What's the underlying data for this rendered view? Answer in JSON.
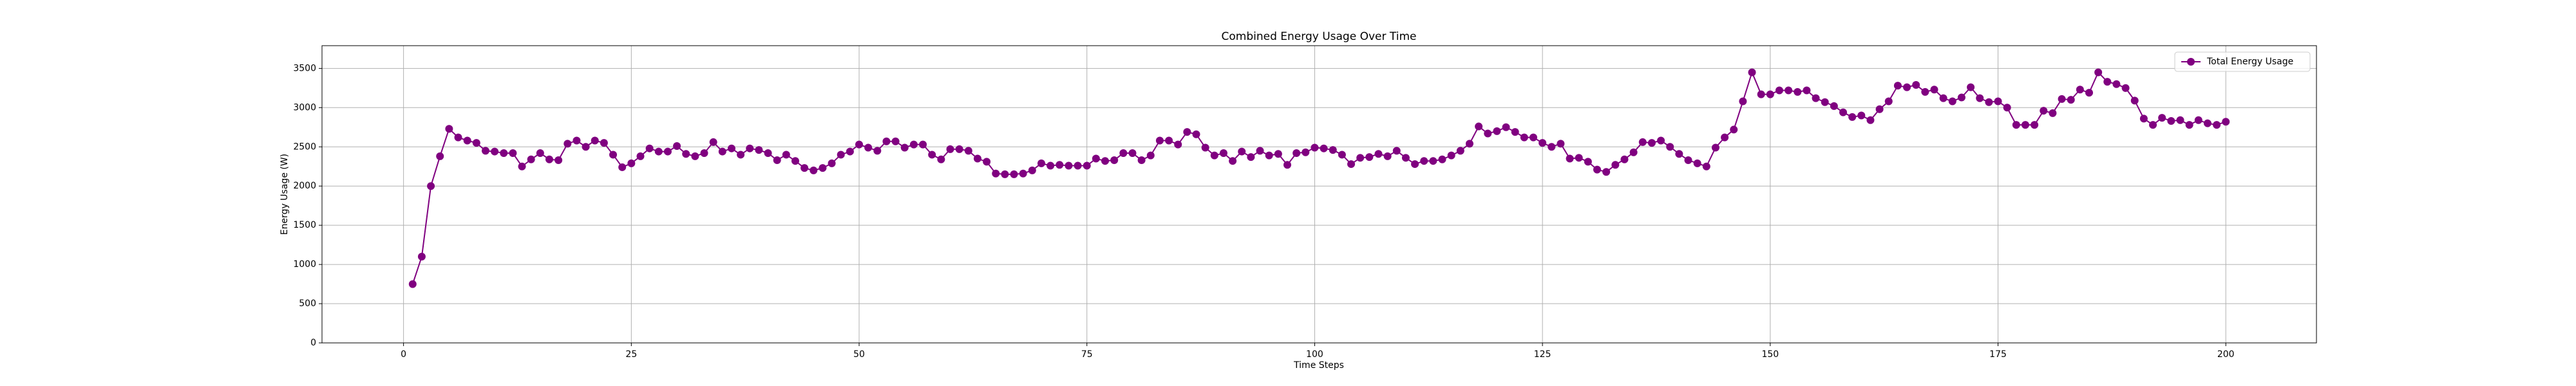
{
  "chart_data": {
    "type": "line",
    "title": "Combined Energy Usage Over Time",
    "xlabel": "Time Steps",
    "ylabel": "Energy Usage (W)",
    "x": [
      1,
      2,
      3,
      4,
      5,
      6,
      7,
      8,
      9,
      10,
      11,
      12,
      13,
      14,
      15,
      16,
      17,
      18,
      19,
      20,
      21,
      22,
      23,
      24,
      25,
      26,
      27,
      28,
      29,
      30,
      31,
      32,
      33,
      34,
      35,
      36,
      37,
      38,
      39,
      40,
      41,
      42,
      43,
      44,
      45,
      46,
      47,
      48,
      49,
      50,
      51,
      52,
      53,
      54,
      55,
      56,
      57,
      58,
      59,
      60,
      61,
      62,
      63,
      64,
      65,
      66,
      67,
      68,
      69,
      70,
      71,
      72,
      73,
      74,
      75,
      76,
      77,
      78,
      79,
      80,
      81,
      82,
      83,
      84,
      85,
      86,
      87,
      88,
      89,
      90,
      91,
      92,
      93,
      94,
      95,
      96,
      97,
      98,
      99,
      100,
      101,
      102,
      103,
      104,
      105,
      106,
      107,
      108,
      109,
      110,
      111,
      112,
      113,
      114,
      115,
      116,
      117,
      118,
      119,
      120,
      121,
      122,
      123,
      124,
      125,
      126,
      127,
      128,
      129,
      130,
      131,
      132,
      133,
      134,
      135,
      136,
      137,
      138,
      139,
      140,
      141,
      142,
      143,
      144,
      145,
      146,
      147,
      148,
      149,
      150,
      151,
      152,
      153,
      154,
      155,
      156,
      157,
      158,
      159,
      160,
      161,
      162,
      163,
      164,
      165,
      166,
      167,
      168,
      169,
      170,
      171,
      172,
      173,
      174,
      175,
      176,
      177,
      178,
      179,
      180,
      181,
      182,
      183,
      184,
      185,
      186,
      187,
      188,
      189,
      190,
      191,
      192,
      193,
      194,
      195,
      196,
      197,
      198,
      199,
      200
    ],
    "series": [
      {
        "name": "Total Energy Usage",
        "color": "#800080",
        "values": [
          750,
          1100,
          2000,
          2380,
          2730,
          2620,
          2580,
          2550,
          2450,
          2440,
          2420,
          2420,
          2250,
          2340,
          2420,
          2340,
          2330,
          2540,
          2580,
          2500,
          2580,
          2550,
          2400,
          2240,
          2290,
          2380,
          2480,
          2440,
          2440,
          2510,
          2410,
          2380,
          2420,
          2560,
          2440,
          2480,
          2400,
          2480,
          2460,
          2420,
          2330,
          2400,
          2320,
          2230,
          2200,
          2230,
          2290,
          2400,
          2440,
          2530,
          2490,
          2450,
          2570,
          2570,
          2490,
          2530,
          2530,
          2400,
          2340,
          2470,
          2470,
          2450,
          2350,
          2310,
          2160,
          2150,
          2150,
          2160,
          2200,
          2290,
          2260,
          2270,
          2260,
          2260,
          2260,
          2350,
          2320,
          2330,
          2420,
          2420,
          2330,
          2390,
          2580,
          2580,
          2530,
          2690,
          2660,
          2490,
          2390,
          2420,
          2320,
          2440,
          2370,
          2450,
          2390,
          2410,
          2270,
          2420,
          2430,
          2490,
          2480,
          2460,
          2400,
          2280,
          2360,
          2370,
          2410,
          2380,
          2450,
          2360,
          2280,
          2320,
          2320,
          2340,
          2390,
          2450,
          2540,
          2760,
          2670,
          2700,
          2750,
          2690,
          2620,
          2620,
          2550,
          2500,
          2540,
          2350,
          2360,
          2310,
          2210,
          2180,
          2270,
          2340,
          2430,
          2560,
          2550,
          2580,
          2500,
          2410,
          2330,
          2290,
          2250,
          2490,
          2620,
          2720,
          3080,
          3450,
          3170,
          3170,
          3220,
          3220,
          3200,
          3220,
          3120,
          3070,
          3020,
          2940,
          2880,
          2900,
          2840,
          2980,
          3080,
          3280,
          3260,
          3290,
          3200,
          3230,
          3120,
          3080,
          3130,
          3260,
          3120,
          3070,
          3080,
          3000,
          2780,
          2780,
          2780,
          2960,
          2930,
          3110,
          3100,
          3230,
          3190,
          3450,
          3330,
          3300,
          3250,
          3090,
          2860,
          2780,
          2870,
          2830,
          2840,
          2780,
          2840,
          2800,
          2780,
          2820
        ]
      }
    ],
    "xlim": [
      -8.95,
      209.95
    ],
    "ylim": [
      0,
      3790
    ],
    "xticks": [
      0,
      25,
      50,
      75,
      100,
      125,
      150,
      175,
      200
    ],
    "yticks": [
      0,
      500,
      1000,
      1500,
      2000,
      2500,
      3000,
      3500
    ],
    "grid": true,
    "legend": "upper right"
  }
}
